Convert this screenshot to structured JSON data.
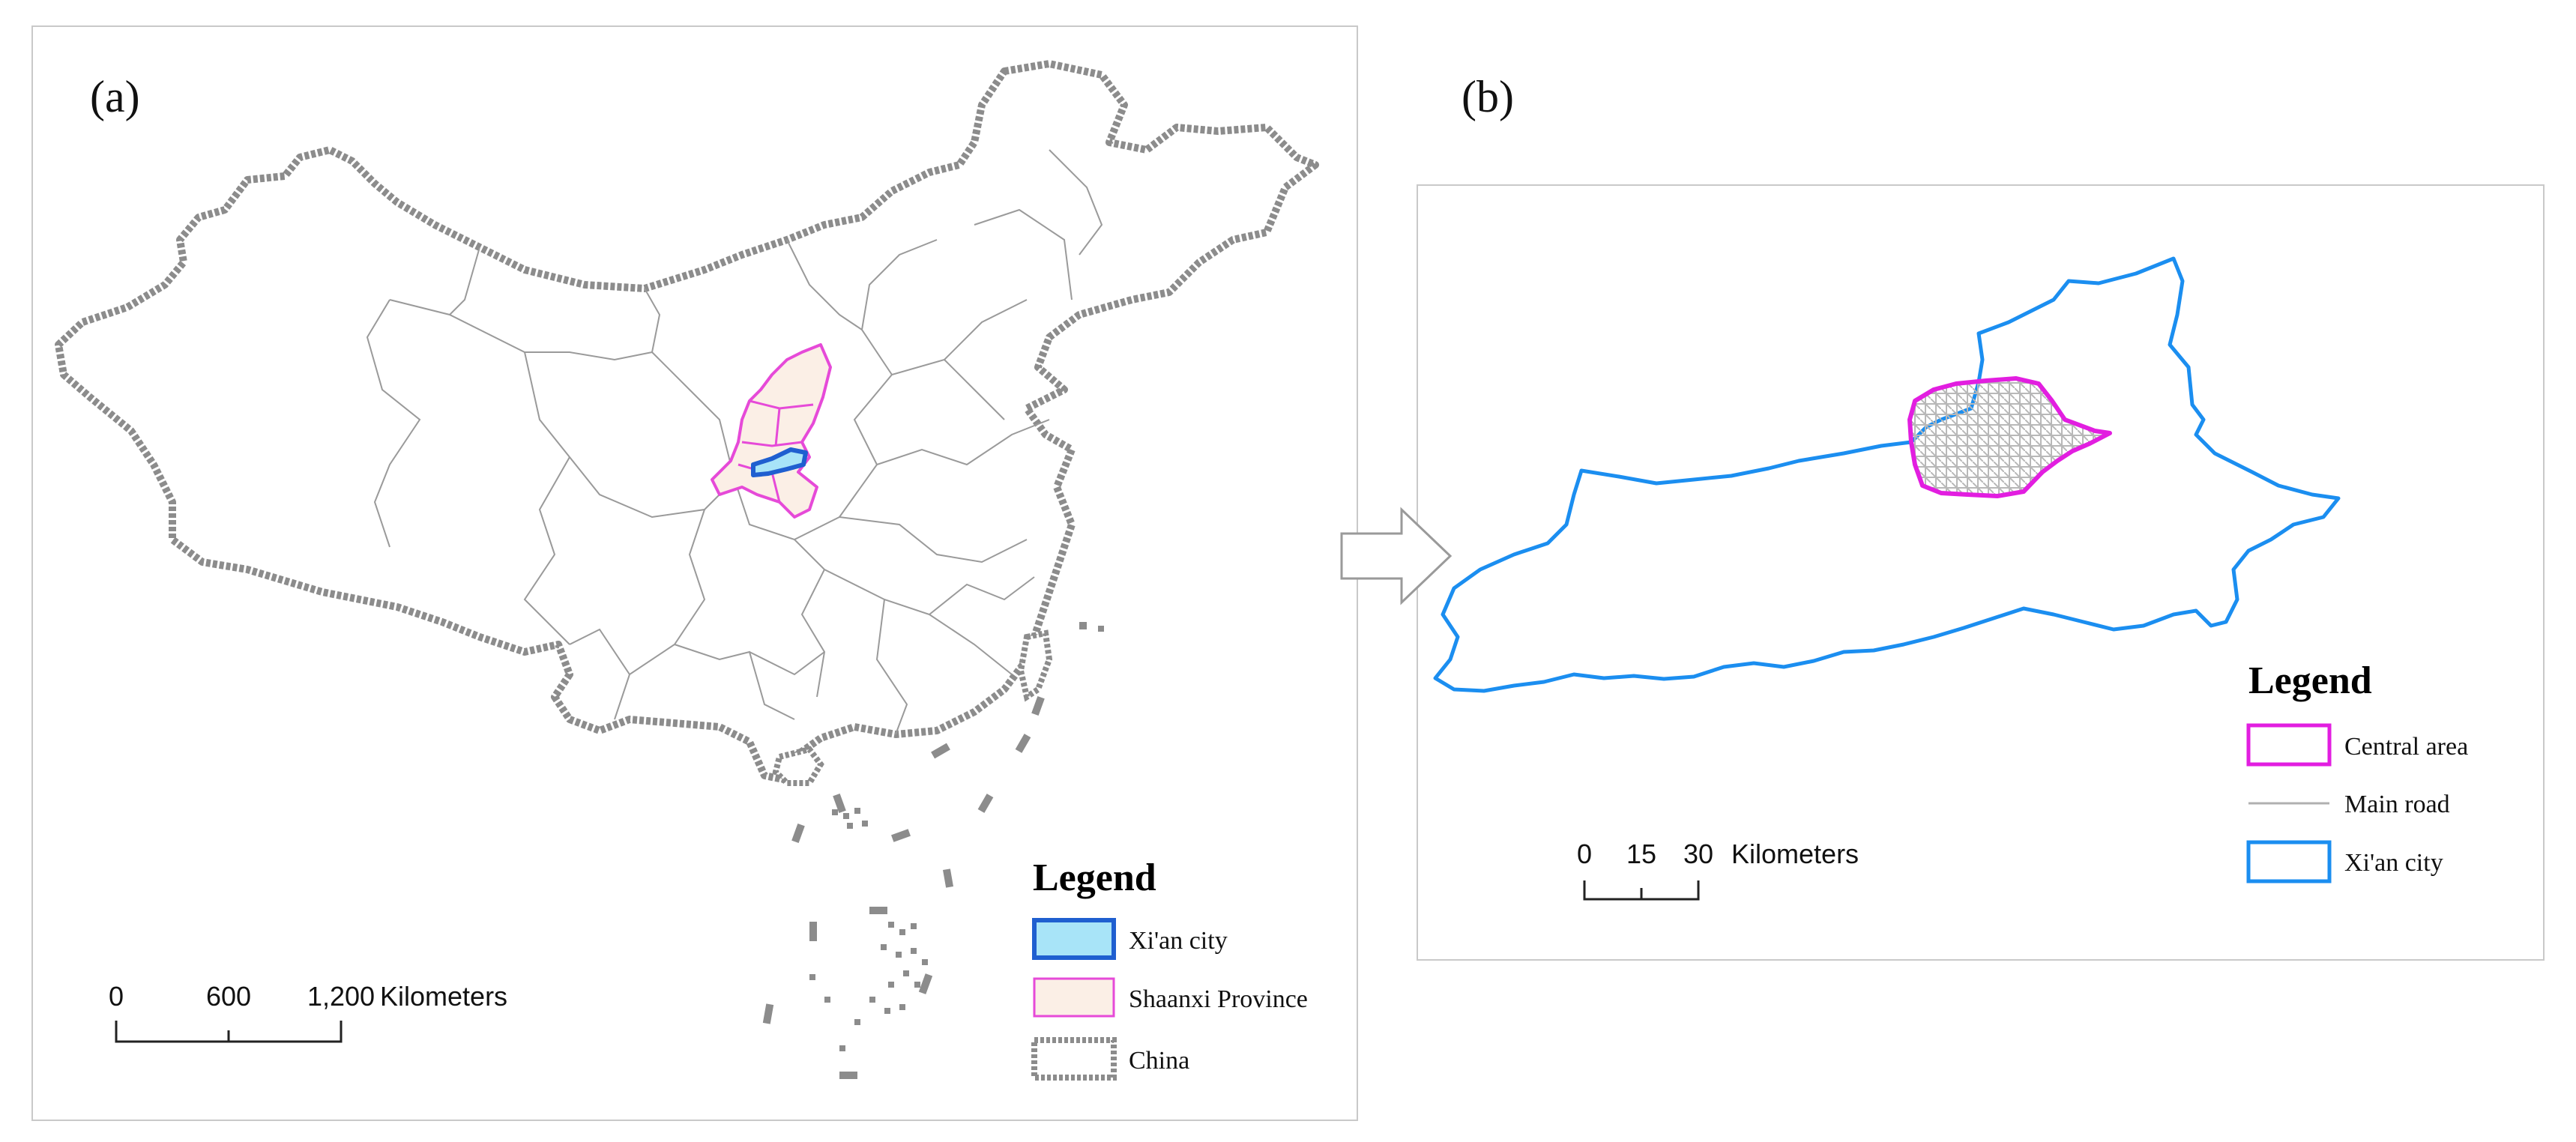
{
  "panel_a": {
    "label": "(a)",
    "legend": {
      "title": "Legend",
      "items": [
        {
          "label": "Xi'an city",
          "fill": "#a8e4f8",
          "stroke": "#1f5fd0"
        },
        {
          "label": "Shaanxi Province",
          "fill": "#fbefe6",
          "stroke": "#e64ad8"
        },
        {
          "label": "China",
          "fill": "#ffffff",
          "stroke": "#8c8c8c"
        }
      ]
    },
    "scale": {
      "ticks": [
        "0",
        "600",
        "1,200"
      ],
      "unit": "Kilometers"
    }
  },
  "panel_b": {
    "label": "(b)",
    "legend": {
      "title": "Legend",
      "items": [
        {
          "label": "Central area",
          "stroke": "#e21ee0"
        },
        {
          "label": "Main road",
          "stroke": "#b0b0b0"
        },
        {
          "label": "Xi'an city",
          "stroke": "#1b8ef0"
        }
      ]
    },
    "scale": {
      "ticks": [
        "0",
        "15",
        "30"
      ],
      "unit": "Kilometers"
    }
  },
  "colors": {
    "china_border": "#8c8c8c",
    "province_lines": "#9a9a9a",
    "shaanxi": "#e64ad8",
    "xian_blue": "#1b8ef0",
    "central_magenta": "#e21ee0",
    "roads": "#b8b8b8"
  },
  "icons": {
    "arrow": "right-arrow-icon"
  }
}
